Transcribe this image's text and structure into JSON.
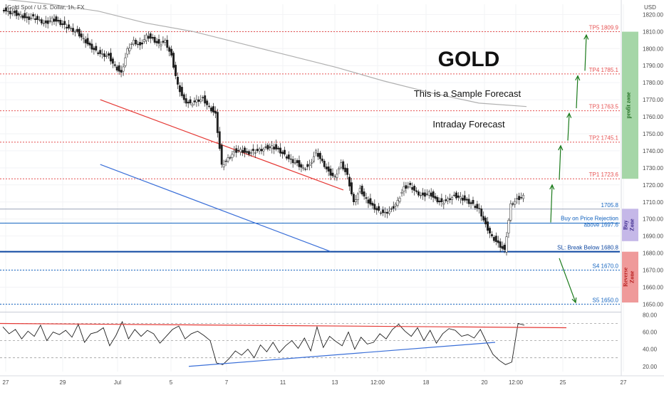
{
  "chart_data": {
    "type": "line",
    "symbol_title": "Gold Spot / U.S. Dollar, 1h, FX",
    "currency": "USD",
    "price_axis": {
      "ylim": [
        1646,
        1826
      ],
      "ticks": [
        "1820.00",
        "1810.00",
        "1800.00",
        "1790.00",
        "1780.00",
        "1770.00",
        "1760.00",
        "1750.00",
        "1740.00",
        "1730.00",
        "1720.00",
        "1710.00",
        "1700.00",
        "1690.00",
        "1680.00",
        "1670.00",
        "1660.00",
        "1650.00"
      ]
    },
    "time_axis": {
      "labels": [
        "27",
        "29",
        "Jul",
        "5",
        "7",
        "11",
        "13",
        "12:00",
        "18",
        "20",
        "12:00",
        "25",
        "27"
      ]
    },
    "price_series": {
      "name": "",
      "values": [
        1824,
        1822,
        1821,
        1820,
        1818,
        1819,
        1817,
        1815,
        1818,
        1816,
        1814,
        1812,
        1810,
        1806,
        1802,
        1799,
        1797,
        1796,
        1790,
        1786,
        1800,
        1805,
        1802,
        1808,
        1806,
        1803,
        1805,
        1796,
        1779,
        1770,
        1768,
        1770,
        1771,
        1766,
        1762,
        1732,
        1736,
        1740,
        1741,
        1739,
        1740,
        1741,
        1742,
        1743,
        1741,
        1738,
        1735,
        1733,
        1730,
        1732,
        1740,
        1734,
        1728,
        1725,
        1733,
        1726,
        1710,
        1718,
        1712,
        1708,
        1705,
        1704,
        1706,
        1711,
        1719,
        1720,
        1716,
        1714,
        1716,
        1712,
        1710,
        1712,
        1714,
        1713,
        1711,
        1709,
        1706,
        1697,
        1690,
        1686,
        1682,
        1709,
        1712,
        1714
      ]
    },
    "ma_series": {
      "name": "",
      "values": [
        1829,
        1826,
        1822,
        1815,
        1810,
        1803,
        1796,
        1789,
        1781,
        1774,
        1768,
        1766
      ]
    },
    "price_channel": {
      "upper": [
        [
          15.5,
          1770
        ],
        [
          33.4,
          1749
        ],
        [
          54.2,
          1717
        ]
      ],
      "lower": [
        [
          15.5,
          1732
        ],
        [
          33.4,
          1708
        ],
        [
          52.1,
          1681
        ]
      ]
    },
    "levels": [
      {
        "label": "TP5 1809.9",
        "value": 1809.9,
        "color": "#e65151",
        "style": "dotted"
      },
      {
        "label": "TP4 1785.1",
        "value": 1785.1,
        "color": "#e65151",
        "style": "dotted"
      },
      {
        "label": "TP3 1763.5",
        "value": 1763.5,
        "color": "#e65151",
        "style": "dotted"
      },
      {
        "label": "TP2 1745.1",
        "value": 1745.1,
        "color": "#e65151",
        "style": "dotted"
      },
      {
        "label": "TP1 1723.6",
        "value": 1723.6,
        "color": "#e65151",
        "style": "dotted"
      },
      {
        "label": "1705.8",
        "value": 1705.8,
        "color": "#9aa3b8",
        "style": "solid"
      },
      {
        "label": "Buy on Price Rejection\nabove 1697.6",
        "value": 1697.6,
        "color": "#1565c0",
        "style": "solid"
      },
      {
        "label": "SL: Break Below 1680.8",
        "value": 1680.8,
        "color": "#0d47a1",
        "style": "thick"
      },
      {
        "label": "S4 1670.0",
        "value": 1670.0,
        "color": "#1565c0",
        "style": "dotted"
      },
      {
        "label": "S5 1650.0",
        "value": 1650.0,
        "color": "#1565c0",
        "style": "dotted"
      }
    ],
    "zones": [
      {
        "label": "profit zone",
        "from": 1723.6,
        "to": 1809.9,
        "color": "#a5d6a7"
      },
      {
        "label": "Buy Zone",
        "from": 1687,
        "to": 1706,
        "color": "#c5b8e8"
      },
      {
        "label": "Reverse Zone",
        "from": 1651,
        "to": 1680.8,
        "color": "#ef9a9a"
      }
    ],
    "annotations": {
      "title": "GOLD",
      "line1": "This is a Sample Forecast",
      "line2": "Intraday Forecast"
    },
    "forecast_arrows": [
      {
        "from": [
          1,
          1698
        ],
        "to": [
          2,
          1720
        ],
        "color": "#1b7a1b"
      },
      {
        "from": [
          2,
          1723
        ],
        "to": [
          3,
          1743
        ],
        "color": "#1b7a1b"
      },
      {
        "from": [
          3,
          1746
        ],
        "to": [
          4,
          1762
        ],
        "color": "#1b7a1b"
      },
      {
        "from": [
          4,
          1765
        ],
        "to": [
          5,
          1784
        ],
        "color": "#1b7a1b"
      },
      {
        "from": [
          5,
          1787
        ],
        "to": [
          6,
          1808
        ],
        "color": "#1b7a1b"
      },
      {
        "from": [
          1,
          1677
        ],
        "to": [
          2,
          1651
        ],
        "color": "#1b7a1b"
      }
    ],
    "oscillator": {
      "ylim": [
        14,
        82
      ],
      "ticks": [
        "80.00",
        "60.00",
        "40.00",
        "20.00"
      ],
      "values": [
        66,
        58,
        63,
        52,
        61,
        55,
        68,
        50,
        60,
        57,
        62,
        54,
        69,
        48,
        58,
        60,
        65,
        44,
        56,
        72,
        52,
        63,
        55,
        62,
        58,
        47,
        55,
        63,
        67,
        52,
        58,
        61,
        56,
        50,
        24,
        22,
        29,
        38,
        33,
        40,
        30,
        45,
        37,
        48,
        36,
        44,
        50,
        41,
        53,
        38,
        66,
        42,
        55,
        49,
        44,
        60,
        40,
        54,
        46,
        48,
        58,
        52,
        63,
        69,
        61,
        55,
        65,
        50,
        62,
        47,
        58,
        64,
        62,
        55,
        57,
        53,
        63,
        48,
        34,
        27,
        22,
        25,
        70,
        68
      ]
    }
  }
}
